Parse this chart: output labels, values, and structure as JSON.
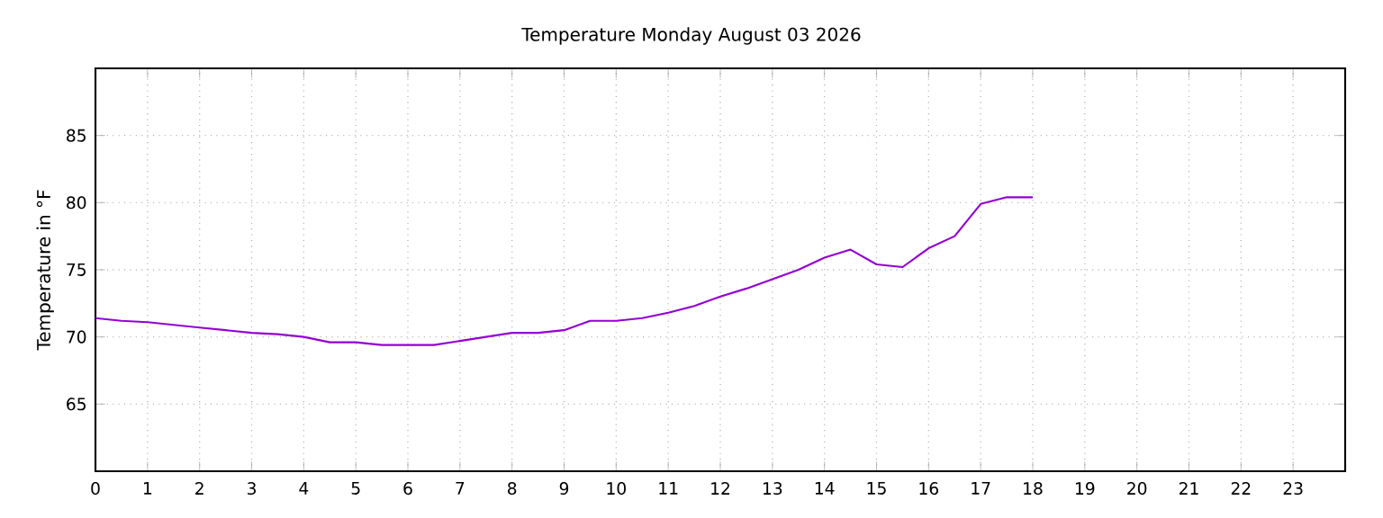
{
  "chart_data": {
    "type": "line",
    "title": "Temperature Monday August 03 2026",
    "ylabel": "Temperature in °F",
    "x": [
      0,
      0.5,
      1,
      1.5,
      2,
      2.5,
      3,
      3.5,
      4,
      4.5,
      5,
      5.5,
      6,
      6.5,
      7,
      7.5,
      8,
      8.5,
      9,
      9.5,
      10,
      10.5,
      11,
      11.5,
      12,
      12.5,
      13,
      13.5,
      14,
      14.5,
      15,
      15.5,
      16,
      16.5,
      17,
      17.5,
      18
    ],
    "series": [
      {
        "color": "#9400d3",
        "values": [
          71.4,
          71.2,
          71.1,
          70.9,
          70.7,
          70.5,
          70.3,
          70.2,
          70.0,
          69.6,
          69.6,
          69.4,
          69.4,
          69.4,
          69.7,
          70.0,
          70.3,
          70.3,
          70.5,
          71.2,
          71.2,
          71.4,
          71.8,
          72.3,
          73.0,
          73.6,
          74.3,
          75.0,
          75.9,
          76.5,
          75.4,
          75.2,
          76.6,
          77.5,
          79.9,
          80.4,
          80.4
        ]
      }
    ],
    "xlim": [
      0,
      24
    ],
    "ylim": [
      60,
      90
    ],
    "xticks": [
      0,
      1,
      2,
      3,
      4,
      5,
      6,
      7,
      8,
      9,
      10,
      11,
      12,
      13,
      14,
      15,
      16,
      17,
      18,
      19,
      20,
      21,
      22,
      23
    ],
    "yticks": [
      65,
      70,
      75,
      80,
      85
    ],
    "grid": true
  }
}
